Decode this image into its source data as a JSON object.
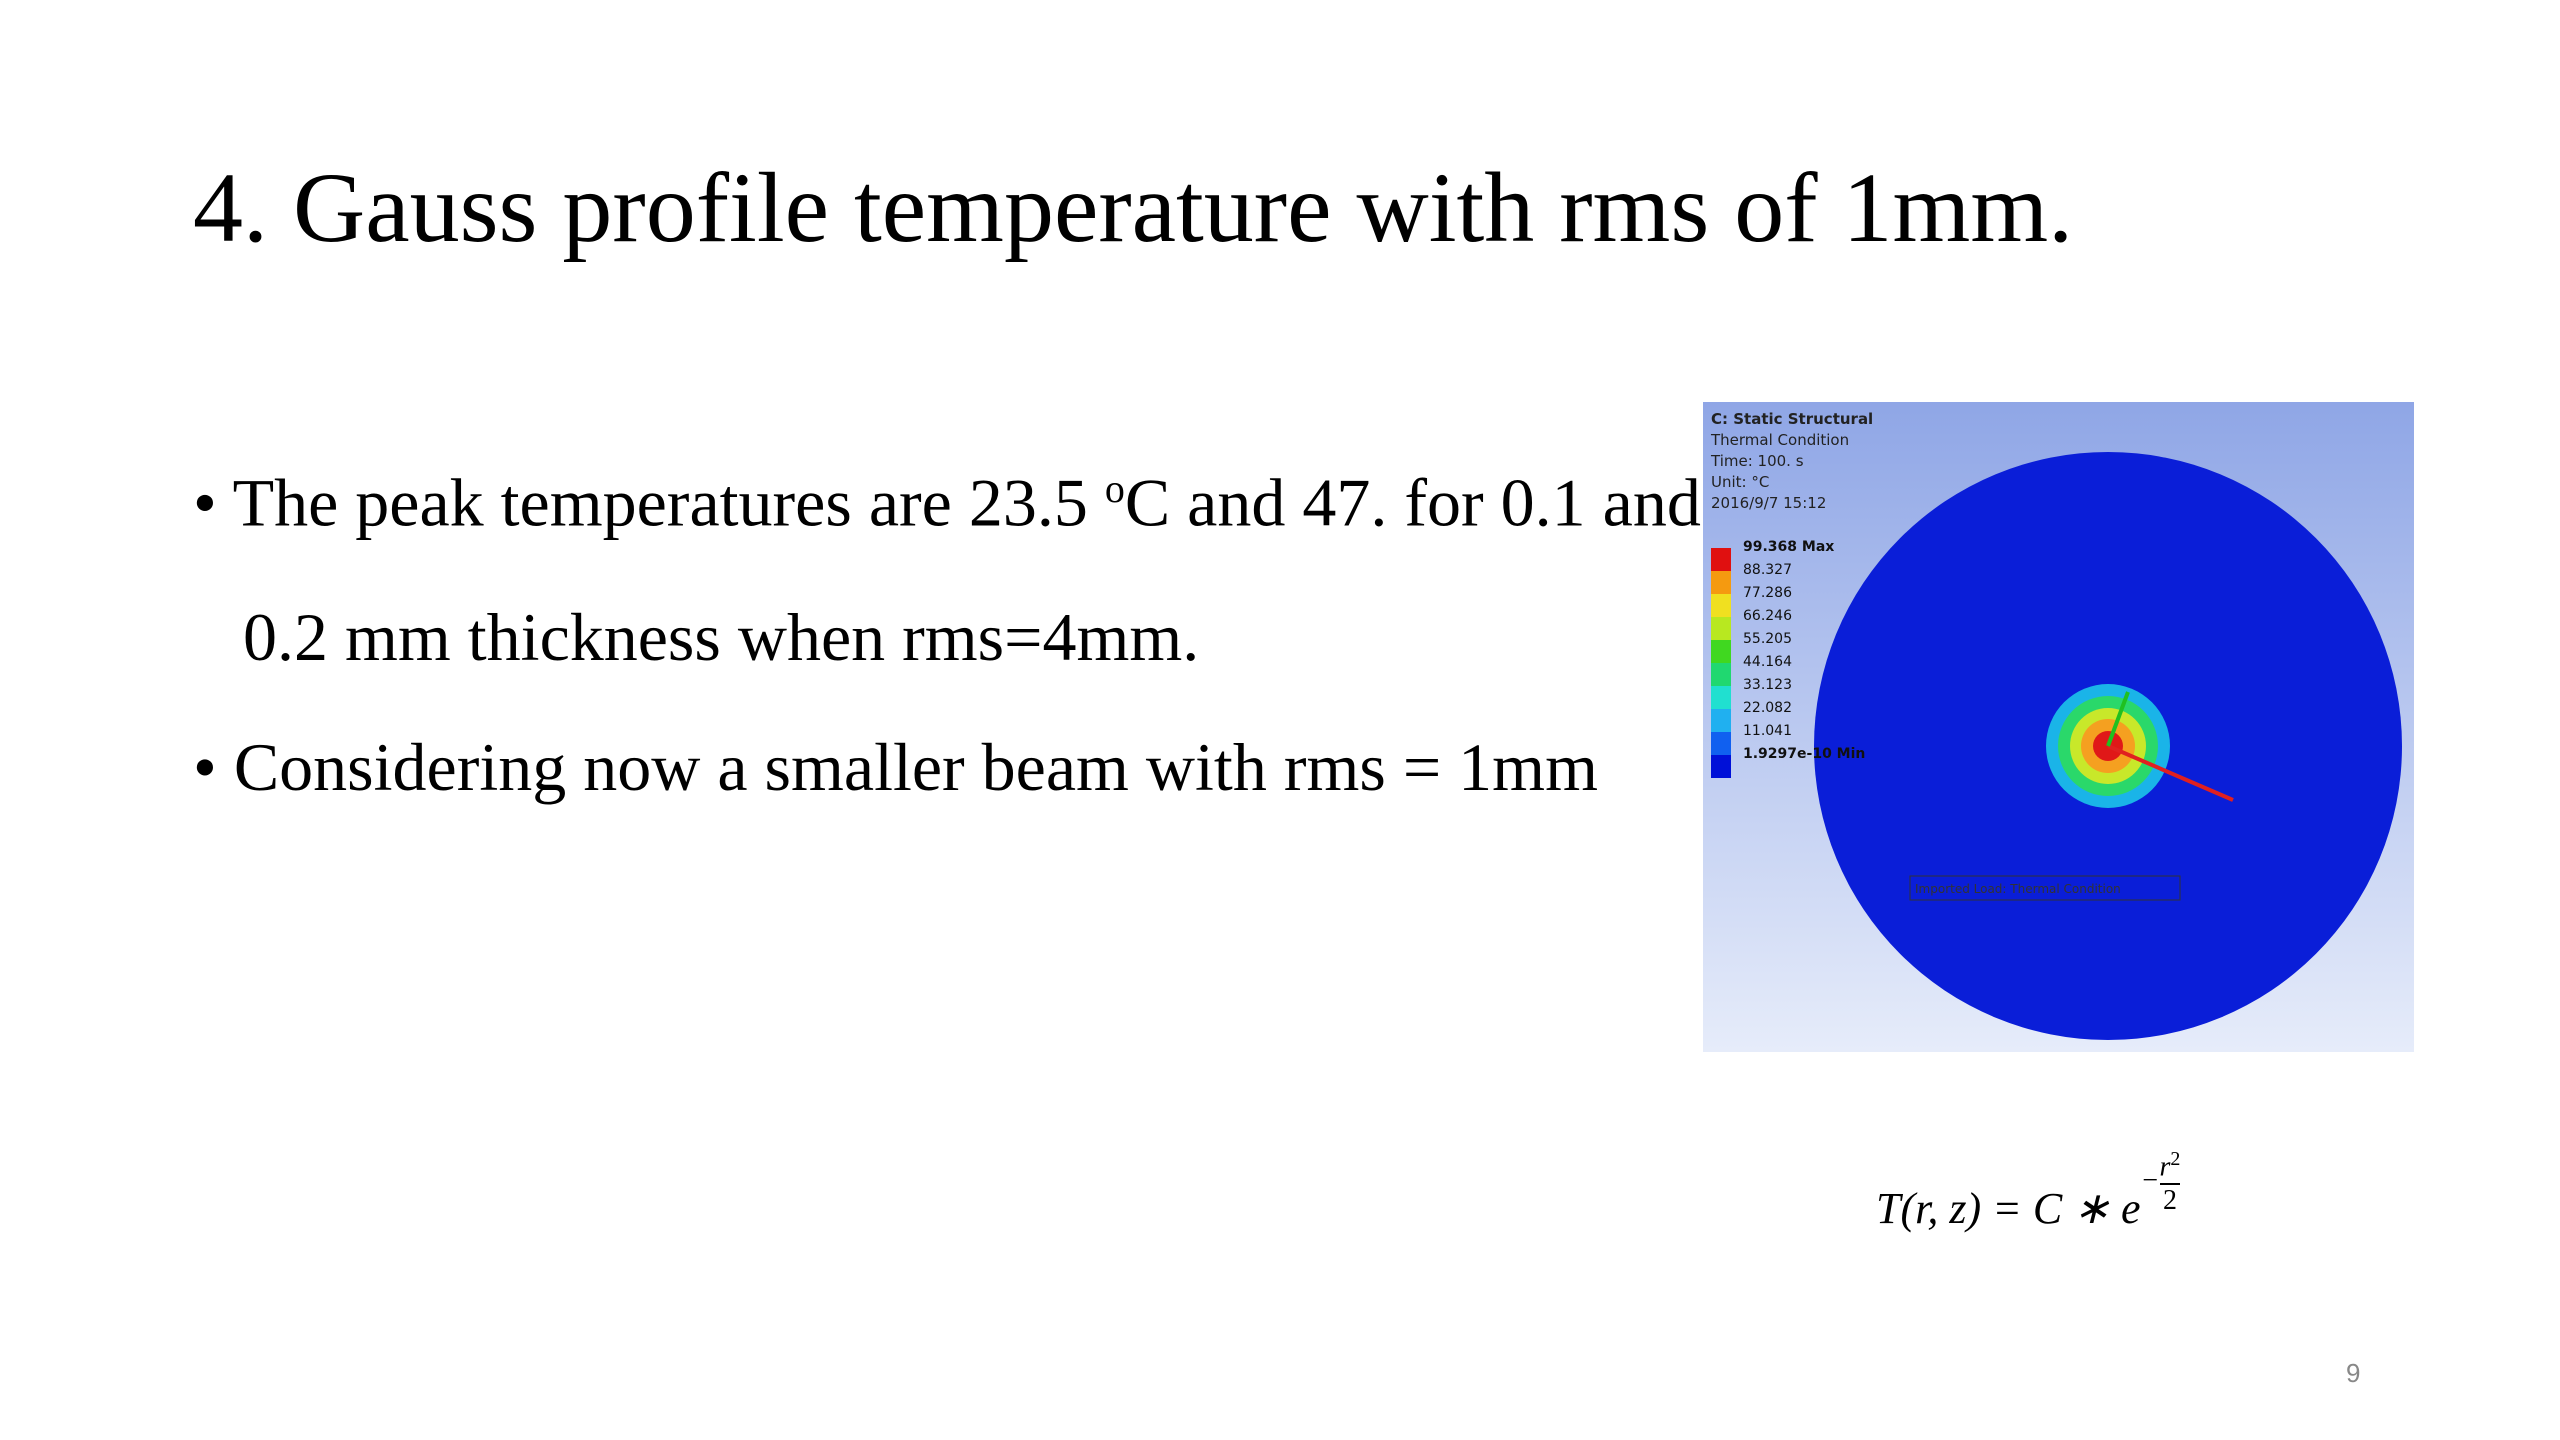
{
  "header": {
    "title": "4. Gauss profile temperature with rms of 1mm."
  },
  "bullets": [
    {
      "before": "The peak temperatures are 23.5 ",
      "sup": "o",
      "after": "C and 47. for 0.1 and 0.2 mm thickness when rms=4mm."
    },
    {
      "before": "Considering now a smaller beam with  rms = 1mm"
    }
  ],
  "figure": {
    "header": [
      "C: Static Structural",
      "Thermal Condition",
      "Time: 100. s",
      "Unit: °C",
      "2016/9/7 15:12"
    ],
    "legend": [
      "99.368 Max",
      "88.327",
      "77.286",
      "66.246",
      "55.205",
      "44.164",
      "33.123",
      "22.082",
      "11.041",
      "1.9297e-10 Min"
    ],
    "load_label": "Imported Load: Thermal Condition"
  },
  "equation": {
    "lhs": "T(r, z) = C ∗ e",
    "sign": "−",
    "numerator": "r",
    "power": "2",
    "denominator": "2"
  },
  "footer": {
    "page_number": "9"
  }
}
